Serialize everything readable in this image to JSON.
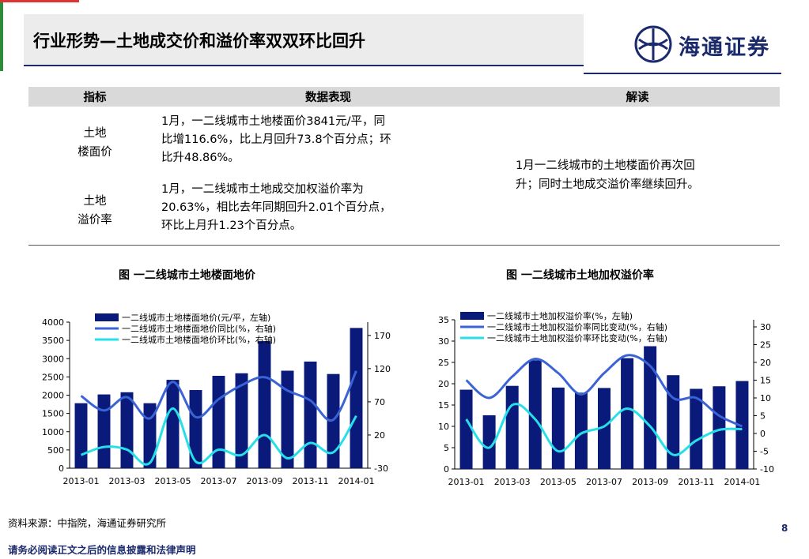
{
  "header": {
    "title": "行业形势—土地成交价和溢价率双双环比回升",
    "logo_text": "海通证券"
  },
  "table": {
    "headers": [
      "指标",
      "数据表现",
      "解读"
    ],
    "rows": [
      {
        "indicator_line1": "土地",
        "indicator_line2": "楼面价",
        "data_lines": [
          "1月，一二线城市土地楼面价3841元/平，同",
          "比增116.6%，比上月回升73.8个百分点；环",
          "比升48.86%。"
        ]
      },
      {
        "indicator_line1": "土地",
        "indicator_line2": "溢价率",
        "data_lines": [
          "1月，一二线城市土地成交加权溢价率为",
          "20.63%，相比去年同期回升2.01个百分点，",
          "环比上月升1.23个百分点。"
        ]
      }
    ],
    "interpretation_lines": [
      "1月一二线城市的土地楼面价再次回",
      "升；同时土地成交溢价率继续回升。"
    ]
  },
  "chart_titles": {
    "left": "图 一二线城市土地楼面地价",
    "right": "图 一二线城市土地加权溢价率"
  },
  "chart_data": [
    {
      "type": "bar",
      "categories": [
        "2013-01",
        "2013-02",
        "2013-03",
        "2013-04",
        "2013-05",
        "2013-06",
        "2013-07",
        "2013-08",
        "2013-09",
        "2013-10",
        "2013-11",
        "2013-12",
        "2014-01"
      ],
      "x_tick_labels": [
        "2013-01",
        "2013-03",
        "2013-05",
        "2013-07",
        "2013-09",
        "2013-11",
        "2014-01"
      ],
      "series": [
        {
          "name": "一二线城市土地楼面地价(元/平，左轴)",
          "kind": "bar",
          "axis": "left",
          "color": "#0a1a7a",
          "values": [
            1780,
            2020,
            2080,
            1780,
            2420,
            2140,
            2530,
            2600,
            3480,
            2670,
            2920,
            2580,
            3841
          ]
        },
        {
          "name": "一二线城市土地楼面地价同比(%，右轴)",
          "kind": "line",
          "axis": "right",
          "color": "#3a63d6",
          "values": [
            79,
            57,
            77,
            45,
            100,
            47,
            74,
            95,
            107,
            87,
            72,
            43,
            116.6
          ]
        },
        {
          "name": "一二线城市土地楼面地价环比(%，右轴)",
          "kind": "line",
          "axis": "right",
          "color": "#27dfe8",
          "values": [
            -10,
            2,
            -2,
            -22,
            60,
            -20,
            -2,
            -10,
            20,
            -15,
            8,
            -6,
            48.86
          ]
        }
      ],
      "ylim_left": [
        0,
        4000
      ],
      "ylim_right": [
        -30,
        190
      ],
      "yticks_left": [
        0,
        500,
        1000,
        1500,
        2000,
        2500,
        3000,
        3500,
        4000
      ],
      "yticks_right": [
        -30,
        20,
        70,
        120,
        170
      ],
      "legend": "top"
    },
    {
      "type": "bar",
      "categories": [
        "2013-01",
        "2013-02",
        "2013-03",
        "2013-04",
        "2013-05",
        "2013-06",
        "2013-07",
        "2013-08",
        "2013-09",
        "2013-10",
        "2013-11",
        "2013-12",
        "2014-01"
      ],
      "x_tick_labels": [
        "2013-01",
        "2013-03",
        "2013-05",
        "2013-07",
        "2013-09",
        "2013-11",
        "2014-01"
      ],
      "series": [
        {
          "name": "一二线城市土地加权溢价率(%，左轴)",
          "kind": "bar",
          "axis": "left",
          "color": "#0a1a7a",
          "values": [
            18.6,
            12.6,
            19.5,
            25.5,
            19.1,
            17.9,
            19.0,
            26.0,
            28.8,
            22.0,
            18.8,
            19.4,
            20.63
          ]
        },
        {
          "name": "一二线城市土地加权溢价率同比变动(%，右轴)",
          "kind": "line",
          "axis": "right",
          "color": "#3a63d6",
          "values": [
            15,
            10,
            16,
            21,
            17,
            11,
            17,
            22,
            19,
            10,
            10,
            5,
            2
          ]
        },
        {
          "name": "一二线城市土地加权溢价率环比变动(%，右轴)",
          "kind": "line",
          "axis": "right",
          "color": "#27dfe8",
          "values": [
            4,
            -4,
            8,
            4,
            -5,
            0,
            2,
            7,
            2,
            -6,
            -2,
            1,
            1.23
          ]
        }
      ],
      "ylim_left": [
        0,
        35
      ],
      "ylim_right": [
        -10,
        32
      ],
      "yticks_left": [
        0,
        5,
        10,
        15,
        20,
        25,
        30,
        35
      ],
      "yticks_right": [
        -10,
        -5,
        0,
        5,
        10,
        15,
        20,
        25,
        30
      ],
      "legend": "top"
    }
  ],
  "footer": {
    "source": "资料来源：中指院，海通证券研究所",
    "page_number": "8",
    "disclaimer": "请务必阅读正文之后的信息披露和法律声明"
  }
}
